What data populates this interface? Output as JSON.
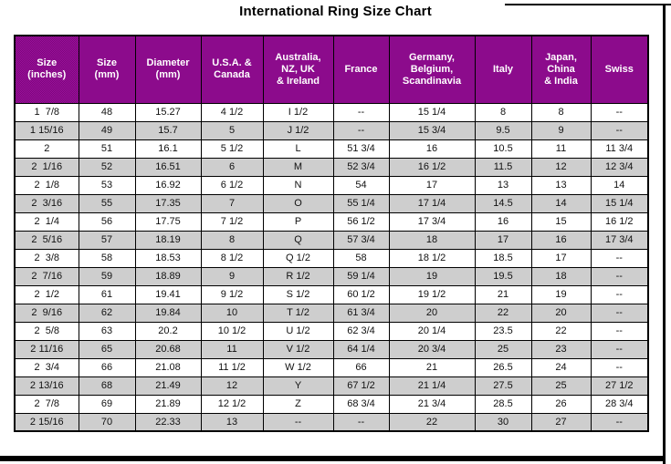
{
  "title": "International Ring Size Chart",
  "colors": {
    "header_bg": "#8B0A8B",
    "header_text": "#FFFFFF",
    "alt_row_bg": "#CDCDCD",
    "row_bg": "#FFFFFF",
    "border": "#000000",
    "title_text": "#000000"
  },
  "chart_data": {
    "type": "table",
    "title": "International Ring Size Chart",
    "columns": [
      "Size\n(inches)",
      "Size\n(mm)",
      "Diameter\n(mm)",
      "U.S.A. &\nCanada",
      "Australia,\nNZ, UK\n& Ireland",
      "France",
      "Germany,\nBelgium,\nScandinavia",
      "Italy",
      "Japan,\nChina\n& India",
      "Swiss"
    ],
    "rows": [
      [
        "1  7/8",
        "48",
        "15.27",
        "4 1/2",
        "I 1/2",
        "--",
        "15 1/4",
        "8",
        "8",
        "--"
      ],
      [
        "1 15/16",
        "49",
        "15.7",
        "5",
        "J 1/2",
        "--",
        "15 3/4",
        "9.5",
        "9",
        "--"
      ],
      [
        "2",
        "51",
        "16.1",
        "5 1/2",
        "L",
        "51 3/4",
        "16",
        "10.5",
        "11",
        "11 3/4"
      ],
      [
        "2  1/16",
        "52",
        "16.51",
        "6",
        "M",
        "52 3/4",
        "16 1/2",
        "11.5",
        "12",
        "12 3/4"
      ],
      [
        "2  1/8",
        "53",
        "16.92",
        "6 1/2",
        "N",
        "54",
        "17",
        "13",
        "13",
        "14"
      ],
      [
        "2  3/16",
        "55",
        "17.35",
        "7",
        "O",
        "55 1/4",
        "17 1/4",
        "14.5",
        "14",
        "15 1/4"
      ],
      [
        "2  1/4",
        "56",
        "17.75",
        "7 1/2",
        "P",
        "56 1/2",
        "17 3/4",
        "16",
        "15",
        "16 1/2"
      ],
      [
        "2  5/16",
        "57",
        "18.19",
        "8",
        "Q",
        "57 3/4",
        "18",
        "17",
        "16",
        "17 3/4"
      ],
      [
        "2  3/8",
        "58",
        "18.53",
        "8 1/2",
        "Q 1/2",
        "58",
        "18 1/2",
        "18.5",
        "17",
        "--"
      ],
      [
        "2  7/16",
        "59",
        "18.89",
        "9",
        "R 1/2",
        "59 1/4",
        "19",
        "19.5",
        "18",
        "--"
      ],
      [
        "2  1/2",
        "61",
        "19.41",
        "9 1/2",
        "S 1/2",
        "60 1/2",
        "19 1/2",
        "21",
        "19",
        "--"
      ],
      [
        "2  9/16",
        "62",
        "19.84",
        "10",
        "T 1/2",
        "61 3/4",
        "20",
        "22",
        "20",
        "--"
      ],
      [
        "2  5/8",
        "63",
        "20.2",
        "10 1/2",
        "U 1/2",
        "62 3/4",
        "20 1/4",
        "23.5",
        "22",
        "--"
      ],
      [
        "2 11/16",
        "65",
        "20.68",
        "11",
        "V 1/2",
        "64 1/4",
        "20 3/4",
        "25",
        "23",
        "--"
      ],
      [
        "2  3/4",
        "66",
        "21.08",
        "11 1/2",
        "W 1/2",
        "66",
        "21",
        "26.5",
        "24",
        "--"
      ],
      [
        "2 13/16",
        "68",
        "21.49",
        "12",
        "Y",
        "67 1/2",
        "21 1/4",
        "27.5",
        "25",
        "27 1/2"
      ],
      [
        "2  7/8",
        "69",
        "21.89",
        "12 1/2",
        "Z",
        "68 3/4",
        "21 3/4",
        "28.5",
        "26",
        "28 3/4"
      ],
      [
        "2 15/16",
        "70",
        "22.33",
        "13",
        "--",
        "--",
        "22",
        "30",
        "27",
        "--"
      ]
    ]
  }
}
